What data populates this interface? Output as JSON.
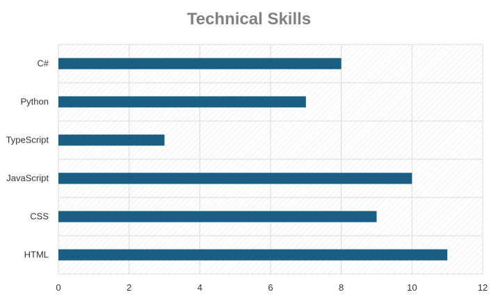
{
  "chart_data": {
    "type": "bar",
    "orientation": "horizontal",
    "title": "Technical Skills",
    "xlabel": "",
    "ylabel": "",
    "categories": [
      "C#",
      "Python",
      "TypeScript",
      "JavaScript",
      "CSS",
      "HTML"
    ],
    "values": [
      8,
      7,
      3,
      10,
      9,
      11
    ],
    "xlim": [
      0,
      12
    ],
    "x_ticks": [
      0,
      2,
      4,
      6,
      8,
      10,
      12
    ],
    "grid": true,
    "plot_background": "diagonal hatch",
    "legend": "none",
    "colors": {
      "bar": "#1a5e84",
      "title": "#808080",
      "grid": "#d9d9d9",
      "hatch": "#e0e0e0",
      "tick_text": "#333333"
    }
  }
}
